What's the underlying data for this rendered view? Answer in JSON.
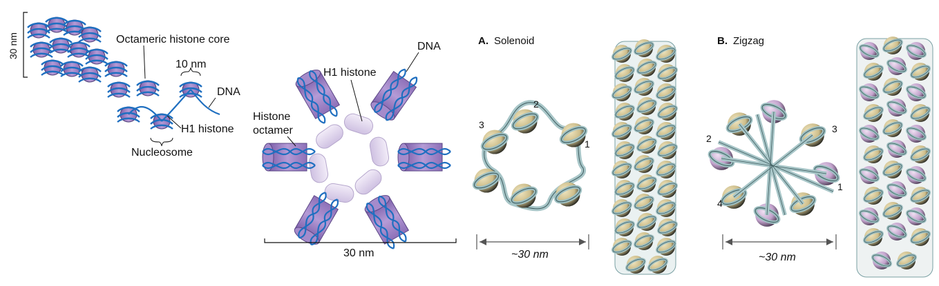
{
  "panel_left": {
    "height_label": "30 nm",
    "core_label": "Octameric histone core",
    "linker_width_label": "10 nm",
    "dna_label": "DNA",
    "h1_label": "H1 histone",
    "nucleosome_label": "Nucleosome"
  },
  "panel_ring": {
    "h1_label": "H1 histone",
    "dna_label": "DNA",
    "octamer_label_line1": "Histone",
    "octamer_label_line2": "octamer",
    "diameter_label": "30 nm"
  },
  "panel_solenoid": {
    "letter": "A.",
    "title": "Solenoid",
    "markers": [
      "1",
      "2",
      "3"
    ],
    "diameter_label": "~30 nm"
  },
  "panel_zigzag": {
    "letter": "B.",
    "title": "Zigzag",
    "markers": [
      "1",
      "2",
      "3",
      "4"
    ],
    "diameter_label": "~30 nm"
  },
  "colors": {
    "dna_blue": "#1f6fc0",
    "histone_purple": "#9b7fc0",
    "h1_lavender": "#e2d8ef",
    "fiber_teal": "#a8c6c8",
    "bead_tan": "#d6c99a",
    "bead_pink": "#c8a8d0"
  }
}
